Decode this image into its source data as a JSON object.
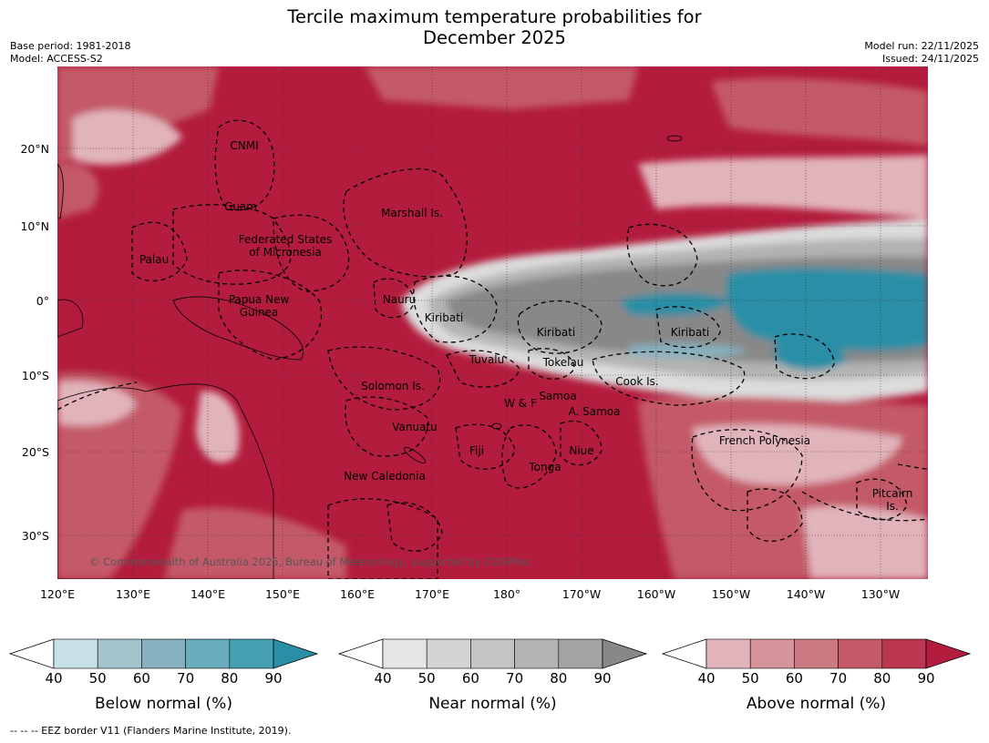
{
  "title_line1": "Tercile maximum temperature probabilities for",
  "title_line2": "December 2025",
  "meta_left": [
    "Base period: 1981-2018",
    "Model: ACCESS-S2"
  ],
  "meta_right": [
    "Model run: 22/11/2025",
    "Issued: 24/11/2025"
  ],
  "lon_ticks": [
    "120°E",
    "130°E",
    "140°E",
    "150°E",
    "160°E",
    "170°E",
    "180°",
    "170°W",
    "160°W",
    "150°W",
    "140°W",
    "130°W"
  ],
  "lat_ticks": [
    "20°N",
    "10°N",
    "0°",
    "10°S",
    "20°S",
    "30°S"
  ],
  "regions": [
    {
      "id": "cnmi",
      "lines": [
        "CNMI"
      ]
    },
    {
      "id": "guam",
      "lines": [
        "Guam"
      ]
    },
    {
      "id": "marshall",
      "lines": [
        "Marshall Is."
      ]
    },
    {
      "id": "palau",
      "lines": [
        "Palau"
      ]
    },
    {
      "id": "fsm",
      "lines": [
        "Federated States",
        "of Micronesia"
      ]
    },
    {
      "id": "png",
      "lines": [
        "Papua New",
        "Guinea"
      ]
    },
    {
      "id": "nauru",
      "lines": [
        "Nauru"
      ]
    },
    {
      "id": "kiribati-w",
      "lines": [
        "Kiribati"
      ]
    },
    {
      "id": "kiribati-c",
      "lines": [
        "Kiribati"
      ]
    },
    {
      "id": "kiribati-e",
      "lines": [
        "Kiribati"
      ]
    },
    {
      "id": "tuvalu",
      "lines": [
        "Tuvalu"
      ]
    },
    {
      "id": "tokelau",
      "lines": [
        "Tokelau"
      ]
    },
    {
      "id": "cook",
      "lines": [
        "Cook Is."
      ]
    },
    {
      "id": "solomon",
      "lines": [
        "Solomon Is."
      ]
    },
    {
      "id": "wf",
      "lines": [
        "W & F"
      ]
    },
    {
      "id": "samoa",
      "lines": [
        "Samoa"
      ]
    },
    {
      "id": "asamoa",
      "lines": [
        "A. Samoa"
      ]
    },
    {
      "id": "vanuatu",
      "lines": [
        "Vanuatu"
      ]
    },
    {
      "id": "fiji",
      "lines": [
        "Fiji"
      ]
    },
    {
      "id": "niue",
      "lines": [
        "Niue"
      ]
    },
    {
      "id": "tonga",
      "lines": [
        "Tonga"
      ]
    },
    {
      "id": "newcal",
      "lines": [
        "New Caledonia"
      ]
    },
    {
      "id": "frpoly",
      "lines": [
        "French Polynesia"
      ]
    },
    {
      "id": "pitcairn",
      "lines": [
        "Pitcairn",
        "Is."
      ]
    }
  ],
  "copyright": "© Commonwealth of Australia 2025, Bureau of Meteorology, supported by COSPPac",
  "colorbars": [
    {
      "title": "Below normal (%)",
      "ticks": [
        "40",
        "50",
        "60",
        "70",
        "80",
        "90"
      ],
      "colors": [
        "#c7e0e7",
        "#a4c4cb",
        "#87b1be",
        "#6aadbd",
        "#44a0b2",
        "#2a8fa6"
      ]
    },
    {
      "title": "Near normal (%)",
      "ticks": [
        "40",
        "50",
        "60",
        "70",
        "80",
        "90"
      ],
      "colors": [
        "#e6e6e6",
        "#d4d4d4",
        "#c4c4c4",
        "#b3b3b3",
        "#a3a3a3",
        "#888888"
      ]
    },
    {
      "title": "Above normal (%)",
      "ticks": [
        "40",
        "50",
        "60",
        "70",
        "80",
        "90"
      ],
      "colors": [
        "#e1b4bb",
        "#d49499",
        "#cc7a82",
        "#c45a69",
        "#bb3650",
        "#b31c3c"
      ]
    }
  ],
  "colors": {
    "above_strong": "#b31c3c",
    "above_mid": "#c45a69",
    "above_light": "#e1b4bb",
    "near_strong": "#888888",
    "near_mid": "#b3b3b3",
    "near_light": "#dcdcdc",
    "below_strong": "#2a8fa6",
    "below_light": "#87b1be"
  },
  "footnote": "--  --  -- EEZ border V11 (Flanders Marine Institute, 2019)."
}
